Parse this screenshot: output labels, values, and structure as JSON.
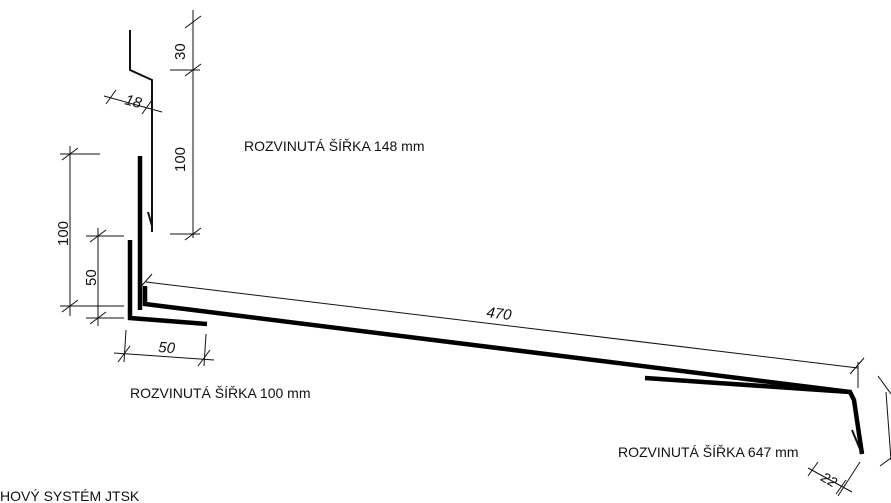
{
  "labels": {
    "width_148": "ROZVINUTÁ ŠÍŘKA 148 mm",
    "width_100": "ROZVINUTÁ ŠÍŘKA 100 mm",
    "width_647": "ROZVINUTÁ ŠÍŘKA 647 mm",
    "footer": "HOVÝ SYSTÉM JTSK"
  },
  "dimensions": {
    "d30": "30",
    "d18": "18",
    "d100_top": "100",
    "d100_left": "100",
    "d50_vert": "50",
    "d50_horiz": "50",
    "d470": "470",
    "d22": "22"
  }
}
